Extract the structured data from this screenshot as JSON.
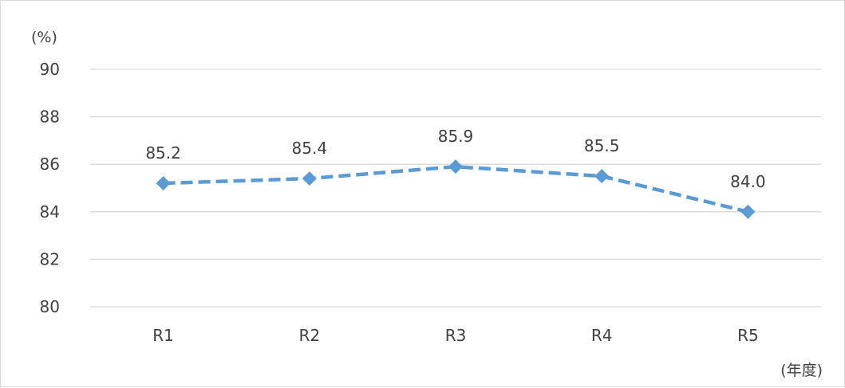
{
  "chart_data": {
    "type": "line",
    "title": "",
    "xlabel": "(年度)",
    "ylabel": "(%)",
    "categories": [
      "R1",
      "R2",
      "R3",
      "R4",
      "R5"
    ],
    "series": [
      {
        "values": [
          85.2,
          85.4,
          85.9,
          85.5,
          84.0
        ],
        "data_labels": [
          "85.2",
          "85.4",
          "85.9",
          "85.5",
          "84.0"
        ],
        "color": "#5b9bd5",
        "line_style": "dashed",
        "marker": "diamond"
      }
    ],
    "ylim": [
      80,
      90
    ],
    "y_ticks": [
      "80",
      "82",
      "84",
      "86",
      "88",
      "90"
    ],
    "grid": true,
    "legend": "none"
  }
}
